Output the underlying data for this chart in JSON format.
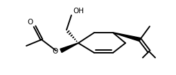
{
  "bg_color": "#ffffff",
  "line_color": "#000000",
  "lw": 1.4,
  "fig_width": 2.54,
  "fig_height": 1.08,
  "dpi": 100,
  "OH_text": "OH",
  "O_carbonyl": "O",
  "O_ester": "O"
}
